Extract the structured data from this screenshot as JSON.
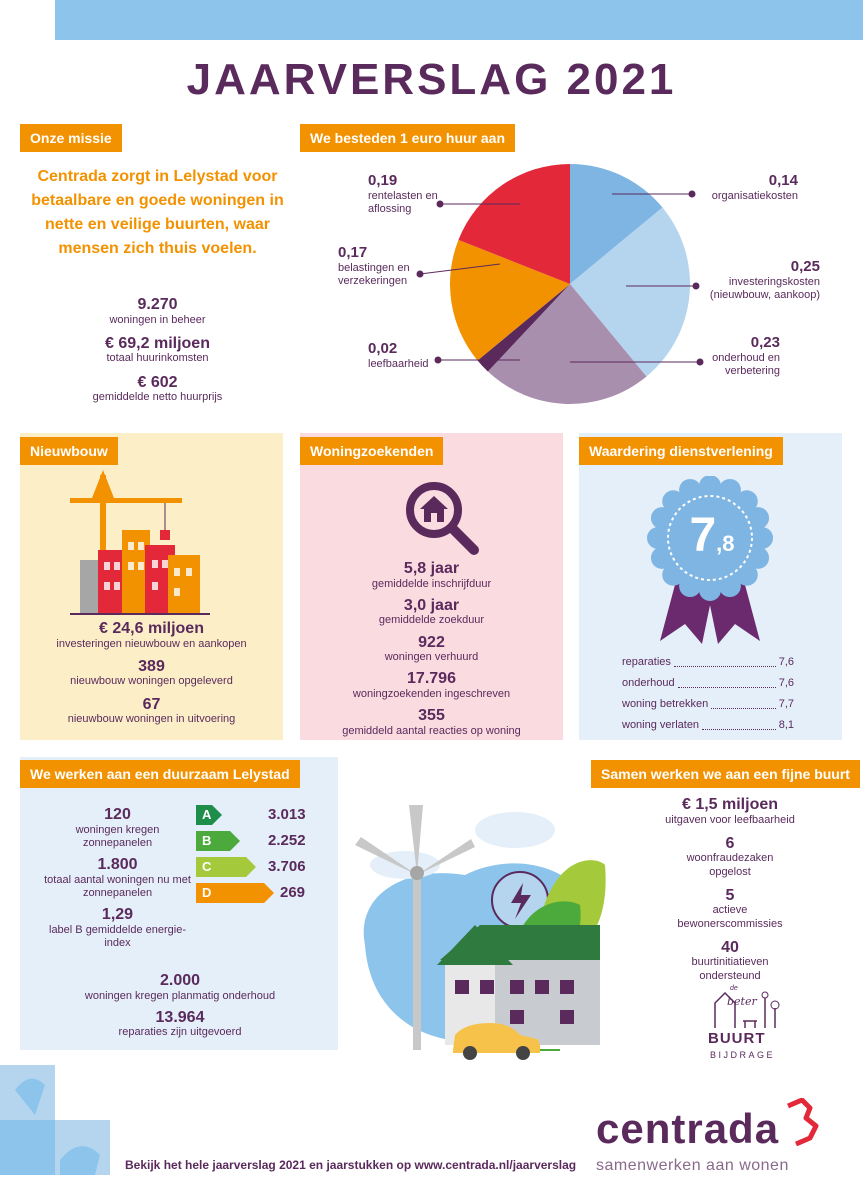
{
  "title": "JAARVERSLAG 2021",
  "mission": {
    "tag": "Onze missie",
    "text": "Centrada zorgt in Lelystad voor betaalbare en goede woningen in nette en veilige buurten, waar mensen zich thuis voelen.",
    "stats": [
      {
        "value": "9.270",
        "label": "woningen in beheer"
      },
      {
        "value": "€ 69,2 miljoen",
        "label": "totaal huurinkomsten"
      },
      {
        "value": "€ 602",
        "label": "gemiddelde netto huurprijs"
      }
    ]
  },
  "spending": {
    "tag": "We besteden 1 euro huur aan",
    "slices": [
      {
        "value": "0,14",
        "label": "organisatiekosten",
        "color": "#7fb5e3"
      },
      {
        "value": "0,25",
        "label": "investeringskosten (nieuwbouw, aankoop)",
        "color": "#b5d5ef"
      },
      {
        "value": "0,23",
        "label": "onderhoud en verbetering",
        "color": "#a98fae"
      },
      {
        "value": "0,02",
        "label": "leefbaarheid",
        "color": "#5a2a5c"
      },
      {
        "value": "0,17",
        "label": "belastingen en verzekeringen",
        "color": "#f39200"
      },
      {
        "value": "0,19",
        "label": "rentelasten en aflossing",
        "color": "#e3283a"
      }
    ]
  },
  "newbuild": {
    "tag": "Nieuwbouw",
    "stats": [
      {
        "value": "€ 24,6 miljoen",
        "label": "investeringen nieuwbouw en aankopen"
      },
      {
        "value": "389",
        "label": "nieuwbouw woningen opgeleverd"
      },
      {
        "value": "67",
        "label": "nieuwbouw woningen in uitvoering"
      }
    ]
  },
  "seekers": {
    "tag": "Woningzoekenden",
    "stats": [
      {
        "value": "5,8 jaar",
        "label": "gemiddelde inschrijfduur"
      },
      {
        "value": "3,0 jaar",
        "label": "gemiddelde zoekduur"
      },
      {
        "value": "922",
        "label": "woningen verhuurd"
      },
      {
        "value": "17.796",
        "label": "woningzoekenden ingeschreven"
      },
      {
        "value": "355",
        "label": "gemiddeld aantal reacties op woning"
      }
    ]
  },
  "rating": {
    "tag": "Waardering dienstverlening",
    "badge_main": "7",
    "badge_sub": ",8",
    "rows": [
      {
        "label": "reparaties",
        "value": "7,6"
      },
      {
        "label": "onderhoud",
        "value": "7,6"
      },
      {
        "label": "woning betrekken",
        "value": "7,7"
      },
      {
        "label": "woning verlaten",
        "value": "8,1"
      }
    ]
  },
  "sustainable": {
    "tag": "We werken aan een duurzaam Lelystad",
    "stats": [
      {
        "value": "120",
        "label": "woningen kregen zonnepanelen"
      },
      {
        "value": "1.800",
        "label": "totaal aantal woningen nu met zonnepanelen"
      },
      {
        "value": "1,29",
        "label": "label B gemiddelde energie-index"
      }
    ],
    "labels": [
      {
        "letter": "A",
        "count": "3.013",
        "color": "#1e8e4a"
      },
      {
        "letter": "B",
        "count": "2.252",
        "color": "#4caa3c"
      },
      {
        "letter": "C",
        "count": "3.706",
        "color": "#a4c93b"
      },
      {
        "letter": "D",
        "count": "269",
        "color": "#f39200"
      }
    ],
    "bottom_stats": [
      {
        "value": "2.000",
        "label": "woningen kregen planmatig onderhoud"
      },
      {
        "value": "13.964",
        "label": "reparaties zijn uitgevoerd"
      }
    ]
  },
  "neighbourhood": {
    "tag": "Samen werken we aan een fijne buurt",
    "stats": [
      {
        "value": "€ 1,5 miljoen",
        "label": "uitgaven voor leefbaarheid"
      },
      {
        "value": "6",
        "label": "woonfraudezaken opgelost"
      },
      {
        "value": "5",
        "label": "actieve bewonerscommissies"
      },
      {
        "value": "40",
        "label": "buurtinitiatieven ondersteund"
      }
    ],
    "logo_text": [
      "de",
      "beter",
      "BUURT",
      "BIJDRAGE"
    ]
  },
  "footer": {
    "text": "Bekijk het hele jaarverslag 2021 en jaarstukken op www.centrada.nl/jaarverslag",
    "brand": "centrada",
    "tagline": "samenwerken aan wonen"
  },
  "colors": {
    "purple": "#5a2a5c",
    "orange": "#f39200",
    "light_blue": "#8dc4ec",
    "yellow_panel": "#fcefc8",
    "pink_panel": "#fadbe0",
    "blue_panel": "#e4eff9",
    "red": "#e3283a"
  }
}
